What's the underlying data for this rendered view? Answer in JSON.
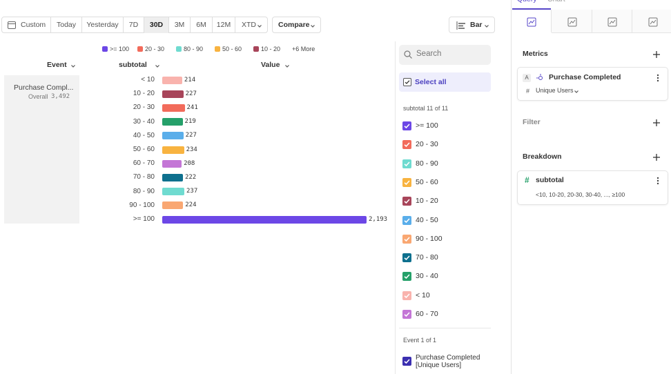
{
  "toolbar": {
    "date_buttons": [
      "Custom",
      "Today",
      "Yesterday",
      "7D",
      "30D",
      "3M",
      "6M",
      "12M",
      "XTD"
    ],
    "active": "30D",
    "compare": "Compare",
    "chart_type": "Bar"
  },
  "legend": {
    "items": [
      {
        "label": ">= 100",
        "color": "#6c47e6"
      },
      {
        "label": "20 - 30",
        "color": "#f26b5b"
      },
      {
        "label": "80 - 90",
        "color": "#6fdbd0"
      },
      {
        "label": "50 - 60",
        "color": "#f8b340"
      },
      {
        "label": "10 - 20",
        "color": "#a8455a"
      }
    ],
    "more": "+6 More"
  },
  "table": {
    "headers": [
      "Event",
      "subtotal",
      "Value"
    ],
    "event": "Purchase Compl...",
    "event_sub_label": "Overall",
    "event_total": "3,492",
    "categories": [
      "< 10",
      "10 - 20",
      "20 - 30",
      "30 - 40",
      "40 - 50",
      "50 - 60",
      "60 - 70",
      "70 - 80",
      "80 - 90",
      "90 - 100",
      ">= 100"
    ],
    "values": [
      214,
      227,
      241,
      219,
      227,
      234,
      208,
      222,
      237,
      224,
      2193
    ],
    "value_labels": [
      "214",
      "227",
      "241",
      "219",
      "227",
      "234",
      "208",
      "222",
      "237",
      "224",
      "2,193"
    ],
    "colors": [
      "#f9b3ad",
      "#a8455a",
      "#f26b5b",
      "#25a06a",
      "#5aaeea",
      "#f8b340",
      "#c476d6",
      "#0e708e",
      "#6fdbd0",
      "#f9a772",
      "#6c47e6"
    ]
  },
  "filter_panel": {
    "search_placeholder": "Search",
    "select_all": "Select all",
    "group_label": "subtotal 11 of 11",
    "items": [
      {
        "label": ">= 100",
        "color": "#6c47e6"
      },
      {
        "label": "20 - 30",
        "color": "#f26b5b"
      },
      {
        "label": "80 - 90",
        "color": "#6fdbd0"
      },
      {
        "label": "50 - 60",
        "color": "#f8b340"
      },
      {
        "label": "10 - 20",
        "color": "#a8455a"
      },
      {
        "label": "40 - 50",
        "color": "#5aaeea"
      },
      {
        "label": "90 - 100",
        "color": "#f9a772"
      },
      {
        "label": "70 - 80",
        "color": "#0e708e"
      },
      {
        "label": "30 - 40",
        "color": "#25a06a"
      },
      {
        "label": "< 10",
        "color": "#f9b3ad"
      },
      {
        "label": "60 - 70",
        "color": "#c476d6"
      }
    ],
    "event_group_label": "Event 1 of 1",
    "event_item": "Purchase Completed [Unique Users]",
    "event_color": "#3b2fb0"
  },
  "side_panel": {
    "tabs": [
      "Query",
      "Chart"
    ],
    "metrics_title": "Metrics",
    "metric_letter": "A",
    "metric_name": "Purchase Completed",
    "metric_measure": "Unique Users",
    "filter_title": "Filter",
    "breakdown_title": "Breakdown",
    "breakdown_name": "subtotal",
    "breakdown_values": "<10, 10-20, 20-30, 30-40, ..., ≥100"
  }
}
